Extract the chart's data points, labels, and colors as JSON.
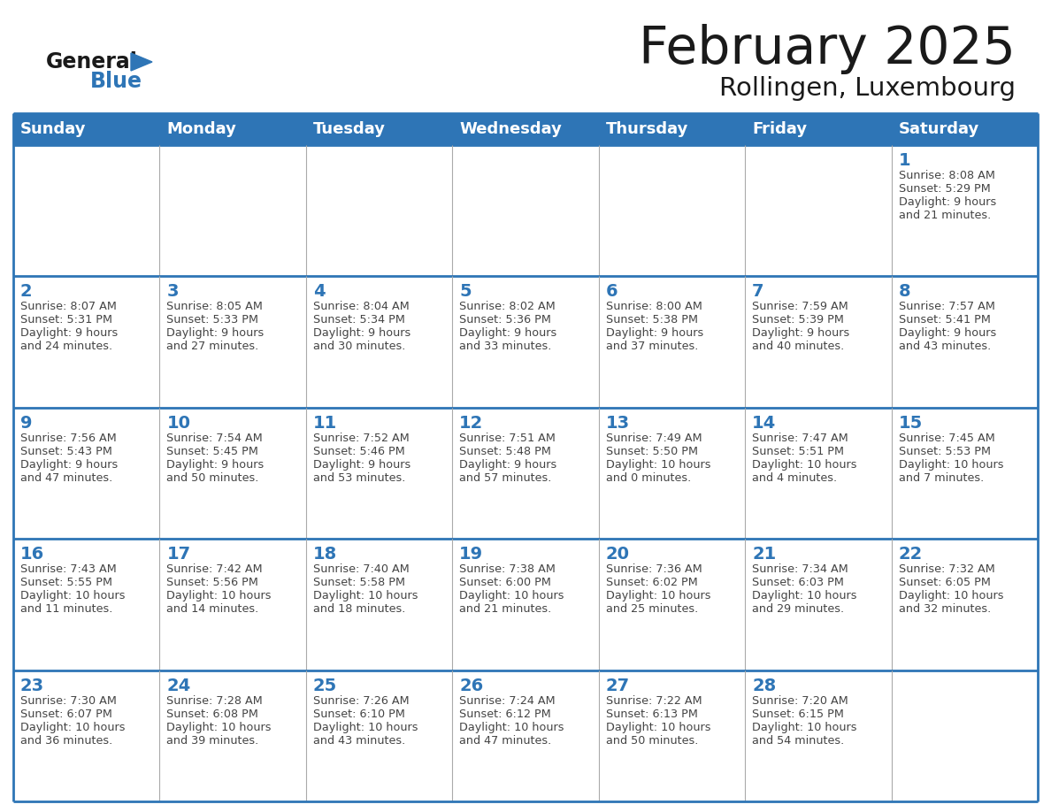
{
  "title": "February 2025",
  "subtitle": "Rollingen, Luxembourg",
  "header_bg": "#2E75B6",
  "header_text_color": "#FFFFFF",
  "border_color": "#2E75B6",
  "row_border_color": "#2E75B6",
  "col_border_color": "#aaaaaa",
  "day_headers": [
    "Sunday",
    "Monday",
    "Tuesday",
    "Wednesday",
    "Thursday",
    "Friday",
    "Saturday"
  ],
  "title_color": "#1a1a1a",
  "subtitle_color": "#1a1a1a",
  "day_number_color": "#2E75B6",
  "cell_text_color": "#444444",
  "logo_general_color": "#1a1a1a",
  "logo_blue_color": "#2E75B6",
  "weeks": [
    [
      null,
      null,
      null,
      null,
      null,
      null,
      {
        "day": 1,
        "sunrise": "8:08 AM",
        "sunset": "5:29 PM",
        "daylight": "9 hours\nand 21 minutes."
      }
    ],
    [
      {
        "day": 2,
        "sunrise": "8:07 AM",
        "sunset": "5:31 PM",
        "daylight": "9 hours\nand 24 minutes."
      },
      {
        "day": 3,
        "sunrise": "8:05 AM",
        "sunset": "5:33 PM",
        "daylight": "9 hours\nand 27 minutes."
      },
      {
        "day": 4,
        "sunrise": "8:04 AM",
        "sunset": "5:34 PM",
        "daylight": "9 hours\nand 30 minutes."
      },
      {
        "day": 5,
        "sunrise": "8:02 AM",
        "sunset": "5:36 PM",
        "daylight": "9 hours\nand 33 minutes."
      },
      {
        "day": 6,
        "sunrise": "8:00 AM",
        "sunset": "5:38 PM",
        "daylight": "9 hours\nand 37 minutes."
      },
      {
        "day": 7,
        "sunrise": "7:59 AM",
        "sunset": "5:39 PM",
        "daylight": "9 hours\nand 40 minutes."
      },
      {
        "day": 8,
        "sunrise": "7:57 AM",
        "sunset": "5:41 PM",
        "daylight": "9 hours\nand 43 minutes."
      }
    ],
    [
      {
        "day": 9,
        "sunrise": "7:56 AM",
        "sunset": "5:43 PM",
        "daylight": "9 hours\nand 47 minutes."
      },
      {
        "day": 10,
        "sunrise": "7:54 AM",
        "sunset": "5:45 PM",
        "daylight": "9 hours\nand 50 minutes."
      },
      {
        "day": 11,
        "sunrise": "7:52 AM",
        "sunset": "5:46 PM",
        "daylight": "9 hours\nand 53 minutes."
      },
      {
        "day": 12,
        "sunrise": "7:51 AM",
        "sunset": "5:48 PM",
        "daylight": "9 hours\nand 57 minutes."
      },
      {
        "day": 13,
        "sunrise": "7:49 AM",
        "sunset": "5:50 PM",
        "daylight": "10 hours\nand 0 minutes."
      },
      {
        "day": 14,
        "sunrise": "7:47 AM",
        "sunset": "5:51 PM",
        "daylight": "10 hours\nand 4 minutes."
      },
      {
        "day": 15,
        "sunrise": "7:45 AM",
        "sunset": "5:53 PM",
        "daylight": "10 hours\nand 7 minutes."
      }
    ],
    [
      {
        "day": 16,
        "sunrise": "7:43 AM",
        "sunset": "5:55 PM",
        "daylight": "10 hours\nand 11 minutes."
      },
      {
        "day": 17,
        "sunrise": "7:42 AM",
        "sunset": "5:56 PM",
        "daylight": "10 hours\nand 14 minutes."
      },
      {
        "day": 18,
        "sunrise": "7:40 AM",
        "sunset": "5:58 PM",
        "daylight": "10 hours\nand 18 minutes."
      },
      {
        "day": 19,
        "sunrise": "7:38 AM",
        "sunset": "6:00 PM",
        "daylight": "10 hours\nand 21 minutes."
      },
      {
        "day": 20,
        "sunrise": "7:36 AM",
        "sunset": "6:02 PM",
        "daylight": "10 hours\nand 25 minutes."
      },
      {
        "day": 21,
        "sunrise": "7:34 AM",
        "sunset": "6:03 PM",
        "daylight": "10 hours\nand 29 minutes."
      },
      {
        "day": 22,
        "sunrise": "7:32 AM",
        "sunset": "6:05 PM",
        "daylight": "10 hours\nand 32 minutes."
      }
    ],
    [
      {
        "day": 23,
        "sunrise": "7:30 AM",
        "sunset": "6:07 PM",
        "daylight": "10 hours\nand 36 minutes."
      },
      {
        "day": 24,
        "sunrise": "7:28 AM",
        "sunset": "6:08 PM",
        "daylight": "10 hours\nand 39 minutes."
      },
      {
        "day": 25,
        "sunrise": "7:26 AM",
        "sunset": "6:10 PM",
        "daylight": "10 hours\nand 43 minutes."
      },
      {
        "day": 26,
        "sunrise": "7:24 AM",
        "sunset": "6:12 PM",
        "daylight": "10 hours\nand 47 minutes."
      },
      {
        "day": 27,
        "sunrise": "7:22 AM",
        "sunset": "6:13 PM",
        "daylight": "10 hours\nand 50 minutes."
      },
      {
        "day": 28,
        "sunrise": "7:20 AM",
        "sunset": "6:15 PM",
        "daylight": "10 hours\nand 54 minutes."
      },
      null
    ]
  ]
}
